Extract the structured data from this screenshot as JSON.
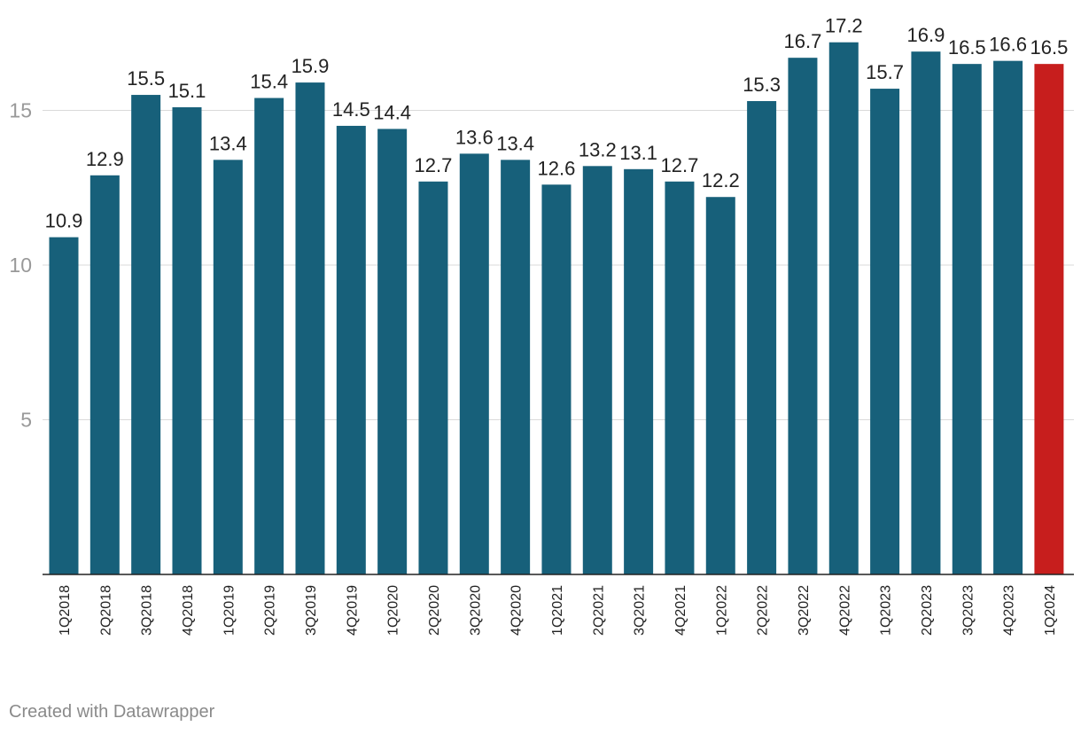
{
  "chart_data": {
    "type": "bar",
    "title": "",
    "xlabel": "",
    "ylabel": "",
    "ylim": [
      0,
      18.5
    ],
    "yticks": [
      5,
      10,
      15
    ],
    "grid": true,
    "categories": [
      "1Q2018",
      "2Q2018",
      "3Q2018",
      "4Q2018",
      "1Q2019",
      "2Q2019",
      "3Q2019",
      "4Q2019",
      "1Q2020",
      "2Q2020",
      "3Q2020",
      "4Q2020",
      "1Q2021",
      "2Q2021",
      "3Q2021",
      "4Q2021",
      "1Q2022",
      "2Q2022",
      "3Q2022",
      "4Q2022",
      "1Q2023",
      "2Q2023",
      "3Q2023",
      "4Q2023",
      "1Q2024"
    ],
    "values": [
      10.9,
      12.9,
      15.5,
      15.1,
      13.4,
      15.4,
      15.9,
      14.5,
      14.4,
      12.7,
      13.6,
      13.4,
      12.6,
      13.2,
      13.1,
      12.7,
      12.2,
      15.3,
      16.7,
      17.2,
      15.7,
      16.9,
      16.5,
      16.6,
      16.5
    ],
    "value_labels": [
      "10.9",
      "12.9",
      "15.5",
      "15.1",
      "13.4",
      "15.4",
      "15.9",
      "14.5",
      "14.4",
      "12.7",
      "13.6",
      "13.4",
      "12.6",
      "13.2",
      "13.1",
      "12.7",
      "12.2",
      "15.3",
      "16.7",
      "17.2",
      "15.7",
      "16.9",
      "16.5",
      "16.6",
      "16.5"
    ],
    "colors": {
      "bar": "#17607a",
      "highlight": "#c71e1d",
      "highlight_category": "1Q2024"
    }
  },
  "footer": {
    "credit": "Created with Datawrapper"
  }
}
